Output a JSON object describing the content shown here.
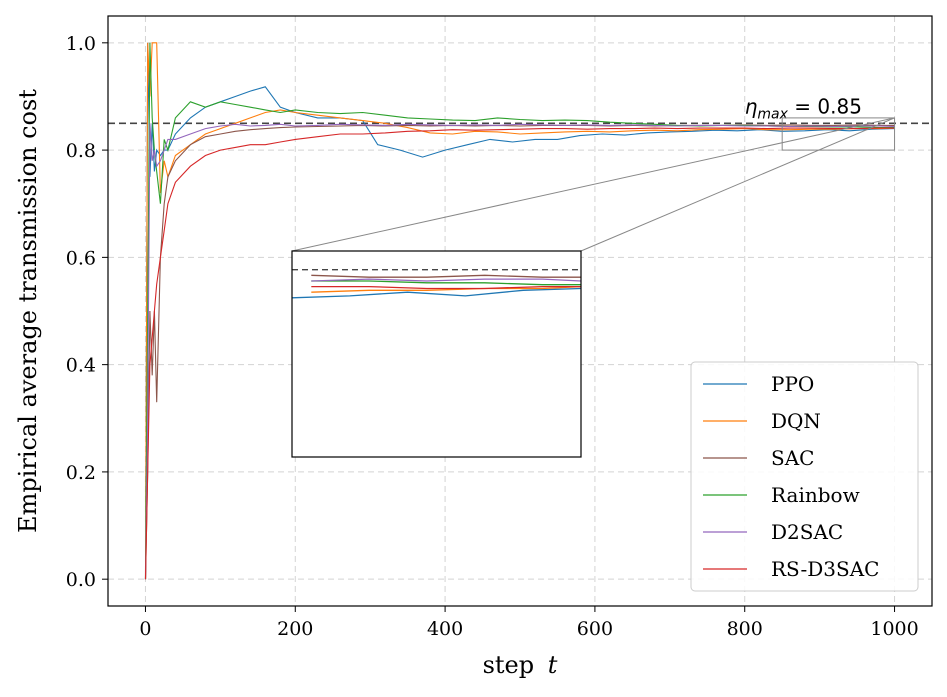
{
  "chart_data": {
    "type": "line",
    "xlabel": "step",
    "xlabel_var": "t",
    "ylabel": "Empirical average transmission cost",
    "xlim": [
      -50,
      1050
    ],
    "ylim": [
      -0.05,
      1.05
    ],
    "xticks": [
      0,
      200,
      400,
      600,
      800,
      1000
    ],
    "xtick_labels": [
      "0",
      "200",
      "400",
      "600",
      "800",
      "1000"
    ],
    "yticks": [
      0.0,
      0.2,
      0.4,
      0.6,
      0.8,
      1.0
    ],
    "ytick_labels": [
      "0.0",
      "0.2",
      "0.4",
      "0.6",
      "0.8",
      "1.0"
    ],
    "grid": true,
    "legend_position": "lower-right",
    "threshold": {
      "value": 0.85,
      "label_symbol": "η",
      "label_sub": "max",
      "label_rest": " = 0.85"
    },
    "series": [
      {
        "name": "PPO",
        "color": "#1f77b4",
        "x": [
          0,
          3,
          6,
          9,
          12,
          15,
          20,
          25,
          30,
          40,
          60,
          80,
          100,
          120,
          140,
          160,
          180,
          200,
          230,
          260,
          290,
          310,
          340,
          370,
          400,
          430,
          460,
          490,
          520,
          550,
          580,
          610,
          640,
          670,
          700,
          730,
          760,
          790,
          820,
          850,
          880,
          910,
          940,
          970,
          1000
        ],
        "y": [
          0.0,
          1.0,
          0.75,
          0.85,
          0.76,
          0.8,
          0.79,
          0.8,
          0.8,
          0.83,
          0.86,
          0.88,
          0.89,
          0.9,
          0.91,
          0.918,
          0.88,
          0.87,
          0.86,
          0.86,
          0.855,
          0.81,
          0.8,
          0.787,
          0.8,
          0.81,
          0.82,
          0.815,
          0.82,
          0.82,
          0.827,
          0.83,
          0.828,
          0.832,
          0.834,
          0.835,
          0.837,
          0.836,
          0.838,
          0.835,
          0.836,
          0.838,
          0.836,
          0.839,
          0.84
        ]
      },
      {
        "name": "DQN",
        "color": "#ff7f0e",
        "x": [
          0,
          3,
          6,
          9,
          12,
          15,
          20,
          25,
          30,
          40,
          60,
          80,
          100,
          120,
          140,
          160,
          180,
          200,
          230,
          260,
          290,
          320,
          350,
          380,
          410,
          440,
          470,
          500,
          530,
          560,
          590,
          620,
          650,
          680,
          710,
          740,
          770,
          800,
          830,
          860,
          890,
          920,
          950,
          980,
          1000
        ],
        "y": [
          0.0,
          1.0,
          0.9,
          1.0,
          1.0,
          1.0,
          0.72,
          0.78,
          0.75,
          0.79,
          0.81,
          0.83,
          0.84,
          0.85,
          0.86,
          0.87,
          0.875,
          0.87,
          0.865,
          0.86,
          0.855,
          0.85,
          0.842,
          0.832,
          0.83,
          0.835,
          0.834,
          0.83,
          0.832,
          0.834,
          0.835,
          0.834,
          0.836,
          0.837,
          0.836,
          0.838,
          0.839,
          0.84,
          0.838,
          0.838,
          0.839,
          0.839,
          0.84,
          0.84,
          0.841
        ]
      },
      {
        "name": "SAC",
        "color": "#8c564b",
        "x": [
          0,
          3,
          6,
          9,
          12,
          15,
          20,
          25,
          30,
          40,
          60,
          80,
          100,
          120,
          140,
          160,
          180,
          200,
          230,
          260,
          290,
          320,
          350,
          380,
          410,
          440,
          470,
          500,
          530,
          560,
          590,
          620,
          650,
          680,
          710,
          740,
          770,
          800,
          830,
          860,
          890,
          920,
          950,
          980,
          1000
        ],
        "y": [
          0.0,
          0.2,
          0.5,
          0.38,
          0.5,
          0.33,
          0.6,
          0.7,
          0.75,
          0.78,
          0.81,
          0.825,
          0.83,
          0.835,
          0.838,
          0.84,
          0.842,
          0.843,
          0.844,
          0.845,
          0.846,
          0.845,
          0.846,
          0.845,
          0.846,
          0.845,
          0.846,
          0.845,
          0.846,
          0.846,
          0.846,
          0.845,
          0.846,
          0.845,
          0.846,
          0.846,
          0.846,
          0.847,
          0.846,
          0.847,
          0.846,
          0.846,
          0.847,
          0.846,
          0.846
        ]
      },
      {
        "name": "Rainbow",
        "color": "#2ca02c",
        "x": [
          0,
          3,
          6,
          9,
          12,
          15,
          20,
          25,
          30,
          40,
          60,
          80,
          100,
          120,
          140,
          160,
          180,
          200,
          230,
          260,
          290,
          320,
          350,
          380,
          410,
          440,
          470,
          500,
          530,
          560,
          590,
          620,
          650,
          680,
          710,
          740,
          770,
          800,
          830,
          860,
          890,
          920,
          950,
          980,
          1000
        ],
        "y": [
          0.0,
          0.5,
          1.0,
          0.86,
          0.8,
          0.76,
          0.7,
          0.82,
          0.8,
          0.86,
          0.89,
          0.88,
          0.89,
          0.885,
          0.88,
          0.875,
          0.87,
          0.875,
          0.87,
          0.868,
          0.87,
          0.865,
          0.86,
          0.858,
          0.856,
          0.855,
          0.86,
          0.857,
          0.855,
          0.856,
          0.855,
          0.852,
          0.85,
          0.848,
          0.846,
          0.845,
          0.846,
          0.846,
          0.845,
          0.844,
          0.844,
          0.843,
          0.843,
          0.842,
          0.842
        ]
      },
      {
        "name": "D2SAC",
        "color": "#9467bd",
        "x": [
          0,
          3,
          6,
          9,
          12,
          15,
          20,
          25,
          30,
          40,
          60,
          80,
          100,
          120,
          140,
          160,
          180,
          200,
          230,
          260,
          290,
          320,
          350,
          380,
          410,
          440,
          470,
          500,
          530,
          560,
          590,
          620,
          650,
          680,
          710,
          740,
          770,
          800,
          830,
          860,
          890,
          920,
          950,
          980,
          1000
        ],
        "y": [
          0.0,
          0.3,
          0.85,
          0.78,
          0.8,
          0.77,
          0.78,
          0.8,
          0.82,
          0.82,
          0.83,
          0.84,
          0.845,
          0.848,
          0.845,
          0.846,
          0.848,
          0.845,
          0.846,
          0.848,
          0.847,
          0.846,
          0.848,
          0.847,
          0.846,
          0.847,
          0.846,
          0.848,
          0.847,
          0.846,
          0.847,
          0.846,
          0.847,
          0.846,
          0.845,
          0.846,
          0.846,
          0.845,
          0.845,
          0.844,
          0.845,
          0.844,
          0.845,
          0.845,
          0.844
        ]
      },
      {
        "name": "RS-D3SAC",
        "color": "#d62728",
        "x": [
          0,
          3,
          6,
          9,
          12,
          15,
          20,
          25,
          30,
          40,
          60,
          80,
          100,
          120,
          140,
          160,
          180,
          200,
          230,
          260,
          290,
          320,
          350,
          380,
          410,
          440,
          470,
          500,
          530,
          560,
          590,
          620,
          650,
          680,
          710,
          740,
          770,
          800,
          830,
          860,
          890,
          920,
          950,
          980,
          1000
        ],
        "y": [
          0.0,
          0.2,
          0.4,
          0.45,
          0.5,
          0.55,
          0.6,
          0.65,
          0.7,
          0.74,
          0.77,
          0.79,
          0.8,
          0.805,
          0.81,
          0.81,
          0.815,
          0.82,
          0.825,
          0.83,
          0.83,
          0.832,
          0.835,
          0.836,
          0.838,
          0.837,
          0.838,
          0.839,
          0.84,
          0.84,
          0.839,
          0.84,
          0.84,
          0.841,
          0.84,
          0.841,
          0.841,
          0.841,
          0.84,
          0.841,
          0.841,
          0.84,
          0.84,
          0.841,
          0.841
        ]
      }
    ],
    "inset": {
      "xlim": [
        850,
        1000
      ],
      "ylim": [
        0.8,
        0.86
      ]
    }
  }
}
